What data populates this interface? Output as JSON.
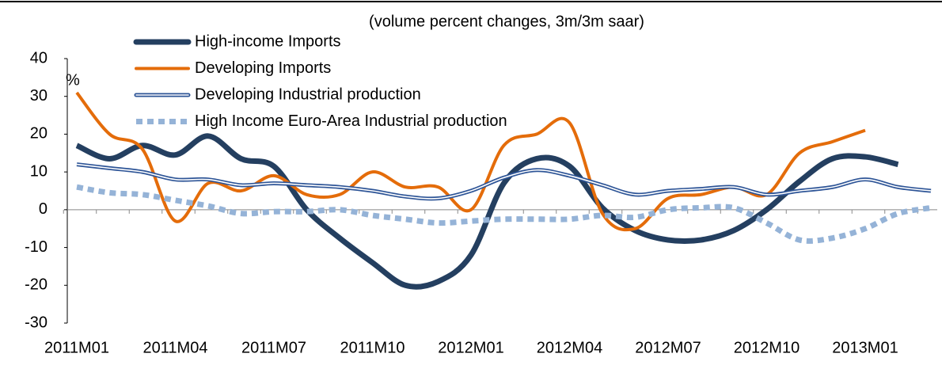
{
  "chart_data": {
    "type": "line",
    "title": "(volume percent changes, 3m/3m saar)",
    "y_unit_label": "%",
    "categories": [
      "2011M01",
      null,
      null,
      "2011M04",
      null,
      null,
      "2011M07",
      null,
      null,
      "2011M10",
      null,
      null,
      "2012M01",
      null,
      null,
      "2012M04",
      null,
      null,
      "2012M07",
      null,
      null,
      "2012M10",
      null,
      null,
      "2013M01",
      null,
      null
    ],
    "series": [
      {
        "name": "High-income Imports",
        "color": "#243f60",
        "style": "thick",
        "values": [
          17,
          13.5,
          17,
          14.5,
          19.5,
          13.5,
          11.5,
          0,
          -7.5,
          -14,
          -20,
          -19,
          -12,
          7,
          13.5,
          11.5,
          0.5,
          -5.5,
          -8,
          -8,
          -5.5,
          0,
          7.5,
          13.5,
          14,
          12,
          null
        ]
      },
      {
        "name": "Developing Imports",
        "color": "#e46c0a",
        "style": "solid",
        "values": [
          31,
          20,
          16,
          -3,
          7,
          5,
          9,
          4,
          4,
          10,
          6,
          6,
          0,
          17,
          20,
          23,
          -1,
          -5,
          3,
          4,
          6,
          4,
          15,
          18,
          21,
          null,
          null
        ]
      },
      {
        "name": "Developing Industrial production",
        "color": "#2e5597",
        "style": "double",
        "values": [
          12,
          11,
          10,
          8,
          8,
          6.5,
          7,
          6.5,
          6,
          5,
          3.5,
          3,
          5,
          8.5,
          10.5,
          9,
          6.5,
          4,
          5,
          5.5,
          6,
          4,
          5,
          6,
          8,
          6,
          5
        ]
      },
      {
        "name": "High Income Euro-Area  Industrial production",
        "color": "#95b3d7",
        "style": "dotted",
        "values": [
          6,
          4.5,
          4,
          2.5,
          1,
          -1,
          -0.5,
          -0.5,
          0,
          -1.5,
          -2.5,
          -3.5,
          -3,
          -2.5,
          -2.5,
          -2.5,
          -1.5,
          -2,
          0,
          0.5,
          0.5,
          -3.5,
          -8,
          -7.5,
          -5,
          -1,
          0.5
        ]
      }
    ],
    "ylim": [
      -30,
      40
    ],
    "yticks": [
      -30,
      -20,
      -10,
      0,
      10,
      20,
      30,
      40
    ],
    "grid": false
  }
}
